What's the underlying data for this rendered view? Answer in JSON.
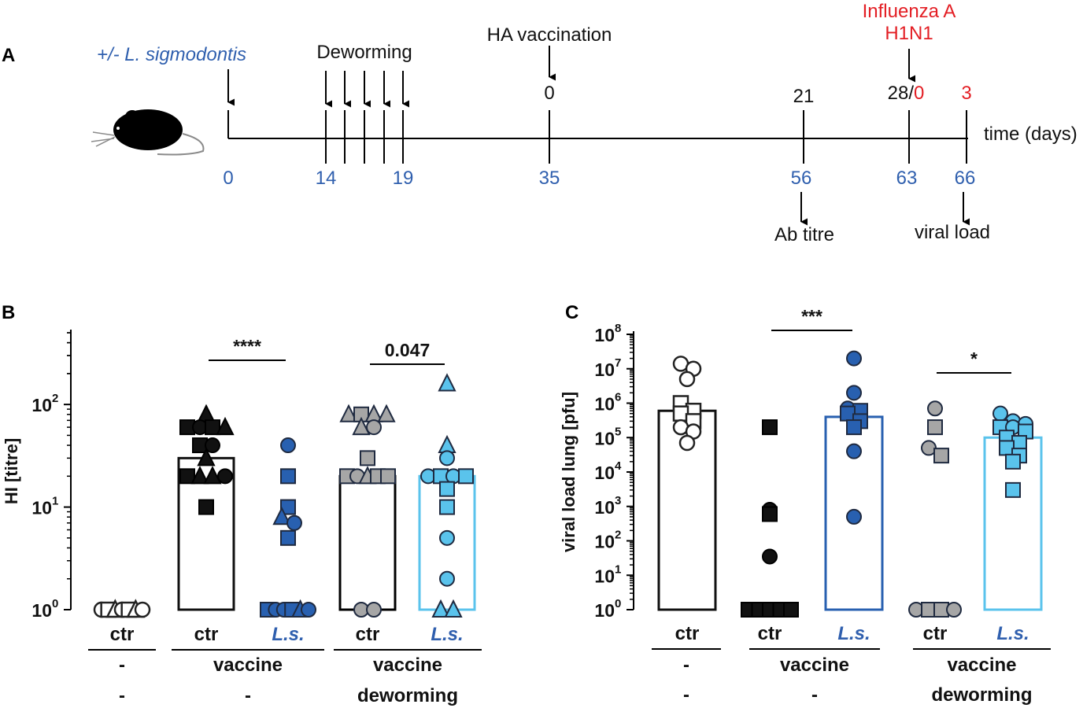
{
  "colors": {
    "black": "#111111",
    "grey": "#a6a6a6",
    "dark_blue": "#2860b0",
    "light_blue": "#5ac3ec",
    "text_blue": "#2f5fae",
    "red": "#e31e24",
    "white": "#ffffff"
  },
  "panel_a": {
    "letter": "A",
    "infection_label": "+/- L. sigmodontis",
    "deworming_label": "Deworming",
    "vaccination_label": "HA vaccination",
    "influenza_label_1": "Influenza A",
    "influenza_label_2": "H1N1",
    "time_label": "time (days)",
    "day_ticks": [
      "0",
      "14",
      "19",
      "35",
      "56",
      "63",
      "66"
    ],
    "vaccine_days": [
      "0",
      "21",
      "28/",
      "0",
      "3"
    ],
    "ab_titre_label": "Ab titre",
    "viral_load_label": "viral load",
    "mouse_icon": "mouse-icon"
  },
  "chart_data": [
    {
      "type": "bar",
      "panel": "B",
      "ylabel": "HI [titre]",
      "yscale": "log",
      "ylim": [
        1,
        500
      ],
      "yticks": [
        "10",
        "10",
        "10"
      ],
      "ytick_exps": [
        "0",
        "1",
        "2"
      ],
      "categories": [
        "ctr",
        "ctr",
        "L.s.",
        "ctr",
        "L.s."
      ],
      "group_row1": [
        "-",
        "vaccine",
        "vaccine"
      ],
      "group_row2": [
        "-",
        "-",
        "deworming"
      ],
      "bars": [
        {
          "category": "ctr",
          "mean": 1,
          "color": "black",
          "points": [
            {
              "v": 1,
              "m": "circle",
              "f": "white"
            },
            {
              "v": 1,
              "m": "square",
              "f": "white"
            },
            {
              "v": 1,
              "m": "triangle",
              "f": "white"
            },
            {
              "v": 1,
              "m": "circle",
              "f": "white"
            },
            {
              "v": 1,
              "m": "square",
              "f": "white"
            },
            {
              "v": 1,
              "m": "triangle",
              "f": "white"
            },
            {
              "v": 1,
              "m": "circle",
              "f": "white"
            }
          ]
        },
        {
          "category": "ctr",
          "mean": 30,
          "color": "black",
          "points": [
            {
              "v": 80,
              "m": "triangle",
              "f": "black"
            },
            {
              "v": 60,
              "m": "square",
              "f": "black"
            },
            {
              "v": 60,
              "m": "circle",
              "f": "black"
            },
            {
              "v": 60,
              "m": "square",
              "f": "black"
            },
            {
              "v": 60,
              "m": "triangle",
              "f": "black"
            },
            {
              "v": 40,
              "m": "square",
              "f": "black"
            },
            {
              "v": 40,
              "m": "circle",
              "f": "black"
            },
            {
              "v": 30,
              "m": "triangle",
              "f": "black"
            },
            {
              "v": 20,
              "m": "square",
              "f": "black"
            },
            {
              "v": 20,
              "m": "triangle",
              "f": "black"
            },
            {
              "v": 20,
              "m": "triangle",
              "f": "black"
            },
            {
              "v": 20,
              "m": "circle",
              "f": "black"
            },
            {
              "v": 10,
              "m": "square",
              "f": "black"
            }
          ]
        },
        {
          "category": "L.s.",
          "mean": 1,
          "color": "dark_blue",
          "points": [
            {
              "v": 40,
              "m": "circle",
              "f": "dark_blue"
            },
            {
              "v": 20,
              "m": "square",
              "f": "dark_blue"
            },
            {
              "v": 10,
              "m": "square",
              "f": "dark_blue"
            },
            {
              "v": 8,
              "m": "triangle",
              "f": "dark_blue"
            },
            {
              "v": 7,
              "m": "circle",
              "f": "dark_blue"
            },
            {
              "v": 5,
              "m": "square",
              "f": "dark_blue"
            },
            {
              "v": 1,
              "m": "square",
              "f": "dark_blue"
            },
            {
              "v": 1,
              "m": "circle",
              "f": "dark_blue"
            },
            {
              "v": 1,
              "m": "circle",
              "f": "dark_blue"
            },
            {
              "v": 1,
              "m": "square",
              "f": "dark_blue"
            },
            {
              "v": 1,
              "m": "triangle",
              "f": "dark_blue"
            },
            {
              "v": 1,
              "m": "circle",
              "f": "dark_blue"
            }
          ]
        },
        {
          "category": "ctr",
          "mean": 20,
          "color": "grey",
          "points": [
            {
              "v": 80,
              "m": "triangle",
              "f": "grey"
            },
            {
              "v": 80,
              "m": "square",
              "f": "grey"
            },
            {
              "v": 80,
              "m": "triangle",
              "f": "grey"
            },
            {
              "v": 80,
              "m": "triangle",
              "f": "grey"
            },
            {
              "v": 60,
              "m": "triangle",
              "f": "grey"
            },
            {
              "v": 60,
              "m": "circle",
              "f": "grey"
            },
            {
              "v": 30,
              "m": "square",
              "f": "grey"
            },
            {
              "v": 20,
              "m": "square",
              "f": "grey"
            },
            {
              "v": 20,
              "m": "circle",
              "f": "grey"
            },
            {
              "v": 20,
              "m": "triangle",
              "f": "grey"
            },
            {
              "v": 20,
              "m": "square",
              "f": "grey"
            },
            {
              "v": 20,
              "m": "square",
              "f": "grey"
            },
            {
              "v": 1,
              "m": "circle",
              "f": "grey"
            },
            {
              "v": 1,
              "m": "circle",
              "f": "grey"
            }
          ]
        },
        {
          "category": "L.s.",
          "mean": 20,
          "color": "light_blue",
          "points": [
            {
              "v": 160,
              "m": "triangle",
              "f": "light_blue"
            },
            {
              "v": 40,
              "m": "triangle",
              "f": "light_blue"
            },
            {
              "v": 30,
              "m": "circle",
              "f": "light_blue"
            },
            {
              "v": 20,
              "m": "circle",
              "f": "light_blue"
            },
            {
              "v": 20,
              "m": "square",
              "f": "light_blue"
            },
            {
              "v": 20,
              "m": "circle",
              "f": "light_blue"
            },
            {
              "v": 20,
              "m": "square",
              "f": "light_blue"
            },
            {
              "v": 15,
              "m": "square",
              "f": "light_blue"
            },
            {
              "v": 10,
              "m": "square",
              "f": "light_blue"
            },
            {
              "v": 5,
              "m": "circle",
              "f": "light_blue"
            },
            {
              "v": 2,
              "m": "circle",
              "f": "light_blue"
            },
            {
              "v": 1,
              "m": "triangle",
              "f": "light_blue"
            },
            {
              "v": 1,
              "m": "triangle",
              "f": "light_blue"
            }
          ]
        }
      ],
      "significance": [
        {
          "from": 1,
          "to": 2,
          "label": "****"
        },
        {
          "from": 3,
          "to": 4,
          "label": "0.047"
        }
      ]
    },
    {
      "type": "bar",
      "panel": "C",
      "ylabel": "viral load lung [pfu]",
      "yscale": "log",
      "ylim": [
        1,
        100000000
      ],
      "yticks": [
        "10",
        "10",
        "10",
        "10",
        "10",
        "10",
        "10",
        "10",
        "10"
      ],
      "ytick_exps": [
        "0",
        "1",
        "2",
        "3",
        "4",
        "5",
        "6",
        "7",
        "8"
      ],
      "categories": [
        "ctr",
        "ctr",
        "L.s.",
        "ctr",
        "L.s."
      ],
      "group_row1": [
        "-",
        "vaccine",
        "vaccine"
      ],
      "group_row2": [
        "-",
        "-",
        "deworming"
      ],
      "bars": [
        {
          "category": "ctr",
          "mean": 600000,
          "color": "black",
          "points": [
            {
              "v": 14000000,
              "m": "circle",
              "f": "white"
            },
            {
              "v": 10000000,
              "m": "circle",
              "f": "white"
            },
            {
              "v": 5000000,
              "m": "circle",
              "f": "white"
            },
            {
              "v": 1000000,
              "m": "square",
              "f": "white"
            },
            {
              "v": 600000,
              "m": "square",
              "f": "white"
            },
            {
              "v": 500000,
              "m": "square",
              "f": "white"
            },
            {
              "v": 300000,
              "m": "square",
              "f": "white"
            },
            {
              "v": 200000,
              "m": "circle",
              "f": "white"
            },
            {
              "v": 150000,
              "m": "circle",
              "f": "white"
            },
            {
              "v": 70000,
              "m": "circle",
              "f": "white"
            }
          ]
        },
        {
          "category": "ctr",
          "mean": 1,
          "color": "black",
          "points": [
            {
              "v": 200000,
              "m": "square",
              "f": "black"
            },
            {
              "v": 800,
              "m": "circle",
              "f": "black"
            },
            {
              "v": 600,
              "m": "square",
              "f": "black"
            },
            {
              "v": 35,
              "m": "circle",
              "f": "black"
            },
            {
              "v": 1,
              "m": "square",
              "f": "black"
            },
            {
              "v": 1,
              "m": "square",
              "f": "black"
            },
            {
              "v": 1,
              "m": "square",
              "f": "black"
            },
            {
              "v": 1,
              "m": "square",
              "f": "black"
            },
            {
              "v": 1,
              "m": "square",
              "f": "black"
            }
          ]
        },
        {
          "category": "L.s.",
          "mean": 400000,
          "color": "dark_blue",
          "points": [
            {
              "v": 20000000,
              "m": "circle",
              "f": "dark_blue"
            },
            {
              "v": 2000000,
              "m": "circle",
              "f": "dark_blue"
            },
            {
              "v": 700000,
              "m": "circle",
              "f": "dark_blue"
            },
            {
              "v": 600000,
              "m": "square",
              "f": "dark_blue"
            },
            {
              "v": 500000,
              "m": "square",
              "f": "dark_blue"
            },
            {
              "v": 300000,
              "m": "square",
              "f": "dark_blue"
            },
            {
              "v": 200000,
              "m": "square",
              "f": "dark_blue"
            },
            {
              "v": 40000,
              "m": "circle",
              "f": "dark_blue"
            },
            {
              "v": 500,
              "m": "circle",
              "f": "dark_blue"
            }
          ]
        },
        {
          "category": "ctr",
          "mean": 1,
          "color": "grey",
          "points": [
            {
              "v": 700000,
              "m": "circle",
              "f": "grey"
            },
            {
              "v": 200000,
              "m": "square",
              "f": "grey"
            },
            {
              "v": 50000,
              "m": "circle",
              "f": "grey"
            },
            {
              "v": 30000,
              "m": "square",
              "f": "grey"
            },
            {
              "v": 1,
              "m": "circle",
              "f": "grey"
            },
            {
              "v": 1,
              "m": "square",
              "f": "grey"
            },
            {
              "v": 1,
              "m": "square",
              "f": "grey"
            },
            {
              "v": 1,
              "m": "circle",
              "f": "grey"
            }
          ]
        },
        {
          "category": "L.s.",
          "mean": 100000,
          "color": "light_blue",
          "points": [
            {
              "v": 500000,
              "m": "circle",
              "f": "light_blue"
            },
            {
              "v": 300000,
              "m": "circle",
              "f": "light_blue"
            },
            {
              "v": 250000,
              "m": "circle",
              "f": "light_blue"
            },
            {
              "v": 200000,
              "m": "square",
              "f": "light_blue"
            },
            {
              "v": 200000,
              "m": "circle",
              "f": "light_blue"
            },
            {
              "v": 150000,
              "m": "square",
              "f": "light_blue"
            },
            {
              "v": 100000,
              "m": "square",
              "f": "light_blue"
            },
            {
              "v": 70000,
              "m": "square",
              "f": "light_blue"
            },
            {
              "v": 50000,
              "m": "square",
              "f": "light_blue"
            },
            {
              "v": 30000,
              "m": "square",
              "f": "light_blue"
            },
            {
              "v": 20000,
              "m": "square",
              "f": "light_blue"
            },
            {
              "v": 3000,
              "m": "square",
              "f": "light_blue"
            }
          ]
        }
      ],
      "significance": [
        {
          "from": 1,
          "to": 2,
          "label": "***"
        },
        {
          "from": 3,
          "to": 4,
          "label": "*"
        }
      ]
    }
  ]
}
